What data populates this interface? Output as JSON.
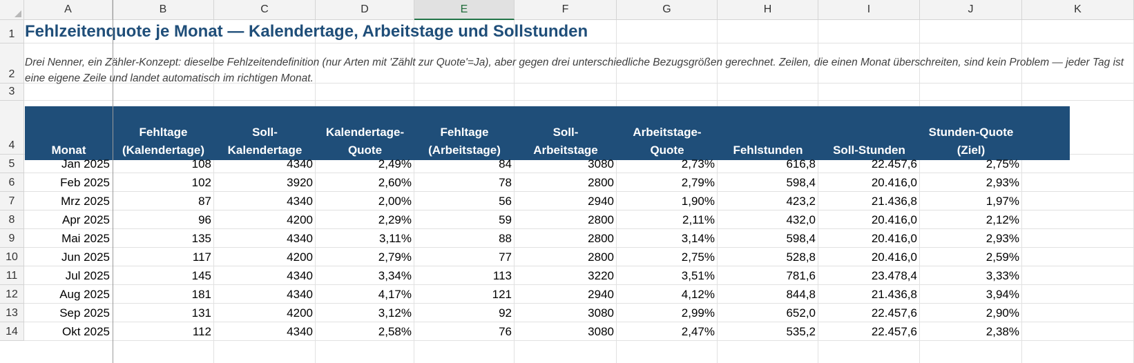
{
  "columns": [
    "A",
    "B",
    "C",
    "D",
    "E",
    "F",
    "G",
    "H",
    "I",
    "J",
    "K"
  ],
  "selected_column": "E",
  "rows": [
    "1",
    "2",
    "3",
    "4",
    "5",
    "6",
    "7",
    "8",
    "9",
    "10",
    "11",
    "12",
    "13",
    "14"
  ],
  "title": "Fehlzeitenquote je Monat — Kalendertage, Arbeitstage und Sollstunden",
  "subtitle": "Drei Nenner, ein Zähler-Konzept: dieselbe Fehlzeitendefinition (nur Arten mit 'Zählt zur Quote'=Ja), aber gegen drei unterschiedliche Bezugsgrößen gerechnet. Zeilen, die einen Monat überschreiten, sind kein Problem — jeder Tag ist eine eigene Zeile und landet automatisch im richtigen Monat.",
  "headers": [
    [
      "Monat"
    ],
    [
      "Fehltage",
      "(Kalendertage)"
    ],
    [
      "Soll-",
      "Kalendertage"
    ],
    [
      "Kalendertage-",
      "Quote"
    ],
    [
      "Fehltage",
      "(Arbeitstage)"
    ],
    [
      "Soll-",
      "Arbeitstage"
    ],
    [
      "Arbeitstage-",
      "Quote"
    ],
    [
      "Fehlstunden"
    ],
    [
      "Soll-Stunden"
    ],
    [
      "Stunden-Quote",
      "(Ziel)"
    ]
  ],
  "table": [
    [
      "Jan 2025",
      "108",
      "4340",
      "2,49%",
      "84",
      "3080",
      "2,73%",
      "616,8",
      "22.457,6",
      "2,75%"
    ],
    [
      "Feb 2025",
      "102",
      "3920",
      "2,60%",
      "78",
      "2800",
      "2,79%",
      "598,4",
      "20.416,0",
      "2,93%"
    ],
    [
      "Mrz 2025",
      "87",
      "4340",
      "2,00%",
      "56",
      "2940",
      "1,90%",
      "423,2",
      "21.436,8",
      "1,97%"
    ],
    [
      "Apr 2025",
      "96",
      "4200",
      "2,29%",
      "59",
      "2800",
      "2,11%",
      "432,0",
      "20.416,0",
      "2,12%"
    ],
    [
      "Mai 2025",
      "135",
      "4340",
      "3,11%",
      "88",
      "2800",
      "3,14%",
      "598,4",
      "20.416,0",
      "2,93%"
    ],
    [
      "Jun 2025",
      "117",
      "4200",
      "2,79%",
      "77",
      "2800",
      "2,75%",
      "528,8",
      "20.416,0",
      "2,59%"
    ],
    [
      "Jul 2025",
      "145",
      "4340",
      "3,34%",
      "113",
      "3220",
      "3,51%",
      "781,6",
      "23.478,4",
      "3,33%"
    ],
    [
      "Aug 2025",
      "181",
      "4340",
      "4,17%",
      "121",
      "2940",
      "4,12%",
      "844,8",
      "21.436,8",
      "3,94%"
    ],
    [
      "Sep 2025",
      "131",
      "4200",
      "3,12%",
      "92",
      "3080",
      "2,99%",
      "652,0",
      "22.457,6",
      "2,90%"
    ],
    [
      "Okt 2025",
      "112",
      "4340",
      "2,58%",
      "76",
      "3080",
      "2,47%",
      "535,2",
      "22.457,6",
      "2,38%"
    ]
  ],
  "colors": {
    "header_fill": "#1f4e79",
    "title": "#1f4e79",
    "selected_col_accent": "#217346"
  }
}
